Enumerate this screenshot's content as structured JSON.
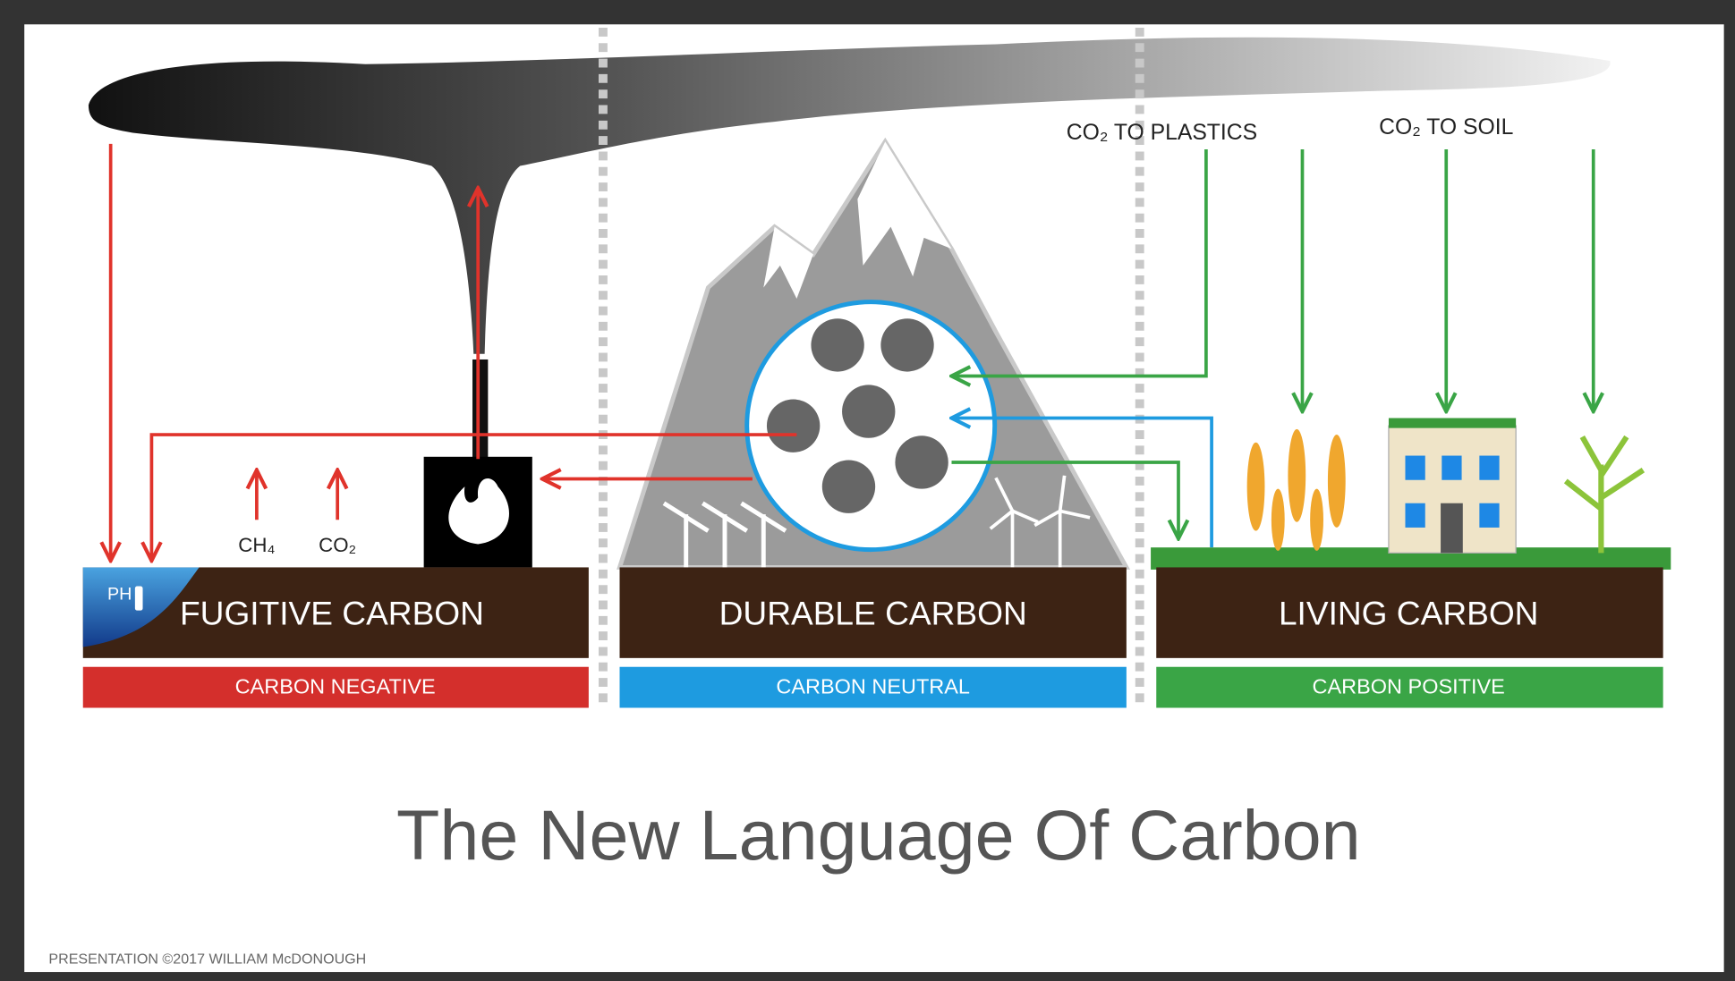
{
  "title": "The New Language Of Carbon",
  "footer": "PRESENTATION ©2017 WILLIAM McDONOUGH",
  "labels": {
    "co2_to_plastics": "CO₂ TO PLASTICS",
    "co2_to_soil": "CO₂ TO SOIL",
    "ch4": "CH₄",
    "co2": "CO₂",
    "ph": "PH"
  },
  "sections": [
    {
      "name": "FUGITIVE CARBON",
      "tag": "CARBON NEGATIVE"
    },
    {
      "name": "DURABLE CARBON",
      "tag": "CARBON NEUTRAL"
    },
    {
      "name": "LIVING CARBON",
      "tag": "CARBON POSITIVE"
    }
  ]
}
